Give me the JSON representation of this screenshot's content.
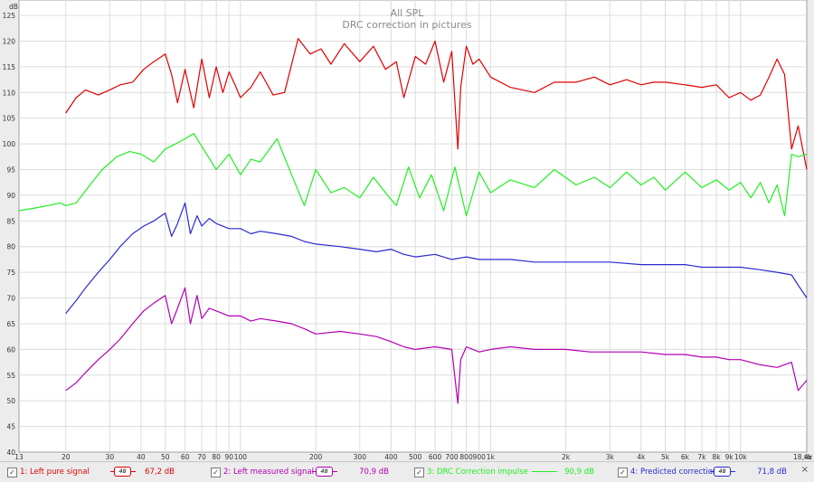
{
  "chart_data": {
    "type": "line",
    "title": "All SPL",
    "subtitle": "DRC correction in pictures",
    "ylabel": "dB",
    "xunit": "Hz",
    "x_scale": "log",
    "xlim": [
      13,
      18400
    ],
    "ylim": [
      40,
      128
    ],
    "grid": true,
    "y_ticks": [
      40,
      45,
      50,
      55,
      60,
      65,
      70,
      75,
      80,
      85,
      90,
      95,
      100,
      105,
      110,
      115,
      120,
      125
    ],
    "x_ticks": [
      {
        "v": 13,
        "label": "13"
      },
      {
        "v": 20,
        "label": "20"
      },
      {
        "v": 30,
        "label": "30"
      },
      {
        "v": 40,
        "label": "40"
      },
      {
        "v": 50,
        "label": "50"
      },
      {
        "v": 60,
        "label": "60"
      },
      {
        "v": 70,
        "label": "70"
      },
      {
        "v": 80,
        "label": "80"
      },
      {
        "v": 90,
        "label": "90"
      },
      {
        "v": 100,
        "label": "100"
      },
      {
        "v": 200,
        "label": "200"
      },
      {
        "v": 300,
        "label": "300"
      },
      {
        "v": 400,
        "label": "400"
      },
      {
        "v": 500,
        "label": "500"
      },
      {
        "v": 600,
        "label": "600"
      },
      {
        "v": 700,
        "label": "700"
      },
      {
        "v": 800,
        "label": "800"
      },
      {
        "v": 900,
        "label": "900"
      },
      {
        "v": 1000,
        "label": "1k"
      },
      {
        "v": 2000,
        "label": "2k"
      },
      {
        "v": 3000,
        "label": "3k"
      },
      {
        "v": 4000,
        "label": "4k"
      },
      {
        "v": 5000,
        "label": "5k"
      },
      {
        "v": 6000,
        "label": "6k"
      },
      {
        "v": 7000,
        "label": "7k"
      },
      {
        "v": 8000,
        "label": "8k"
      },
      {
        "v": 9000,
        "label": "9k"
      },
      {
        "v": 10000,
        "label": "10k"
      },
      {
        "v": 18400,
        "label": "18,4k"
      }
    ],
    "series": [
      {
        "name": "1: Left pure signal",
        "color": "#e00000",
        "x": [
          20,
          22,
          24,
          27,
          30,
          33,
          37,
          41,
          45,
          50,
          53,
          56,
          60,
          65,
          70,
          75,
          80,
          85,
          90,
          95,
          100,
          110,
          120,
          135,
          150,
          170,
          190,
          210,
          230,
          260,
          300,
          340,
          380,
          420,
          450,
          500,
          550,
          600,
          650,
          700,
          740,
          760,
          800,
          850,
          900,
          1000,
          1200,
          1500,
          1800,
          2200,
          2600,
          3000,
          3500,
          4000,
          4500,
          5000,
          6000,
          7000,
          8000,
          9000,
          10000,
          11000,
          12000,
          13000,
          14000,
          15000,
          16000,
          17000,
          18400
        ],
        "values": [
          106,
          109,
          110.5,
          109.5,
          110.5,
          111.5,
          112,
          114.5,
          116,
          117.5,
          113.5,
          108,
          114.5,
          107,
          116.5,
          109,
          115,
          110,
          114,
          111.5,
          109,
          111,
          114,
          109.5,
          110,
          120.5,
          117.5,
          118.5,
          115.5,
          119.5,
          116,
          119,
          114.5,
          116,
          109,
          117,
          115.5,
          120,
          112,
          118,
          99,
          111,
          119,
          115.5,
          116.5,
          113,
          111,
          110,
          112,
          112,
          113,
          111.5,
          112.5,
          111.5,
          112,
          112,
          111.5,
          111,
          111.5,
          109,
          110,
          108.5,
          109.5,
          113,
          116.5,
          113.5,
          99,
          103.5,
          95
        ]
      },
      {
        "name": "2: Left measured signal",
        "color": "#b000b0",
        "x": [
          20,
          22,
          24,
          27,
          30,
          33,
          37,
          41,
          45,
          50,
          53,
          56,
          60,
          63,
          67,
          70,
          75,
          80,
          90,
          100,
          110,
          120,
          140,
          160,
          180,
          200,
          250,
          300,
          350,
          400,
          450,
          500,
          600,
          700,
          740,
          760,
          800,
          900,
          1000,
          1200,
          1500,
          2000,
          2500,
          3000,
          4000,
          5000,
          6000,
          7000,
          8000,
          9000,
          10000,
          12000,
          14000,
          16000,
          17000,
          18400
        ],
        "values": [
          52,
          53.5,
          55.5,
          58,
          60,
          62,
          65,
          67.5,
          69,
          70.5,
          65,
          68,
          72,
          65,
          70.5,
          66,
          68,
          67.5,
          66.5,
          66.5,
          65.5,
          66,
          65.5,
          65,
          64,
          63,
          63.5,
          63,
          62.5,
          61.5,
          60.5,
          60,
          60.5,
          60,
          49.5,
          58,
          60.5,
          59.5,
          60,
          60.5,
          60,
          60,
          59.5,
          59.5,
          59.5,
          59,
          59,
          58.5,
          58.5,
          58,
          58,
          57,
          56.5,
          57.5,
          52,
          54
        ]
      },
      {
        "name": "3: DRC Correction impulse",
        "color": "#22ee22",
        "x": [
          13,
          15,
          17,
          19,
          20,
          22,
          25,
          28,
          32,
          36,
          40,
          45,
          50,
          55,
          60,
          65,
          70,
          80,
          90,
          100,
          110,
          120,
          140,
          160,
          180,
          200,
          230,
          260,
          300,
          340,
          380,
          420,
          470,
          520,
          580,
          650,
          720,
          800,
          900,
          1000,
          1200,
          1500,
          1800,
          2200,
          2600,
          3000,
          3500,
          4000,
          4500,
          5000,
          6000,
          7000,
          8000,
          9000,
          10000,
          11000,
          12000,
          13000,
          14000,
          15000,
          16000,
          17000,
          18400
        ],
        "values": [
          87,
          87.5,
          88,
          88.5,
          88,
          88.5,
          92,
          95,
          97.5,
          98.5,
          98,
          96.5,
          99,
          100,
          101,
          102,
          99.5,
          95,
          98,
          94,
          97,
          96.5,
          101,
          94,
          88,
          95,
          90.5,
          91.5,
          89.5,
          93.5,
          90.5,
          88,
          95.5,
          89.5,
          94,
          87,
          95.5,
          86,
          94.5,
          90.5,
          93,
          91.5,
          95,
          92,
          93.5,
          91.5,
          94.5,
          92,
          93.5,
          91,
          94.5,
          91.5,
          93,
          91,
          92.5,
          89.5,
          92.5,
          88.5,
          92,
          86,
          98,
          97.5,
          98
        ]
      },
      {
        "name": "4: Predicted correction",
        "color": "#2a2ad0",
        "x": [
          20,
          22,
          24,
          27,
          30,
          33,
          37,
          41,
          45,
          50,
          53,
          56,
          60,
          63,
          67,
          70,
          75,
          80,
          90,
          100,
          110,
          120,
          140,
          160,
          180,
          200,
          250,
          300,
          350,
          400,
          450,
          500,
          600,
          700,
          800,
          900,
          1000,
          1200,
          1500,
          2000,
          2500,
          3000,
          4000,
          5000,
          6000,
          7000,
          8000,
          9000,
          10000,
          12000,
          14000,
          16000,
          17000,
          18400
        ],
        "values": [
          67,
          69.5,
          72,
          75,
          77.5,
          80,
          82.5,
          84,
          85,
          86.5,
          82,
          84.5,
          88.5,
          82.5,
          86,
          84,
          85.5,
          84.5,
          83.5,
          83.5,
          82.5,
          83,
          82.5,
          82,
          81,
          80.5,
          80,
          79.5,
          79,
          79.5,
          78.5,
          78,
          78.5,
          77.5,
          78,
          77.5,
          77.5,
          77.5,
          77,
          77,
          77,
          77,
          76.5,
          76.5,
          76.5,
          76,
          76,
          76,
          76,
          75.5,
          75,
          74.5,
          72.5,
          70
        ]
      }
    ]
  },
  "legend": [
    {
      "label": "1: Left pure signal",
      "value": "67,2 dB",
      "color": "#e00000",
      "box_text": "48",
      "checked": "✓"
    },
    {
      "label": "2: Left measured signal",
      "value": "70,9 dB",
      "color": "#b000b0",
      "box_text": "48",
      "checked": "✓"
    },
    {
      "label": "3: DRC Correction impulse",
      "value": "90,9 dB",
      "color": "#22ee22",
      "box_text": "",
      "checked": "✓"
    },
    {
      "label": "4: Predicted correction",
      "value": "71,8 dB",
      "color": "#2a2ad0",
      "box_text": "48",
      "checked": "✓"
    }
  ],
  "close_glyph": "×"
}
